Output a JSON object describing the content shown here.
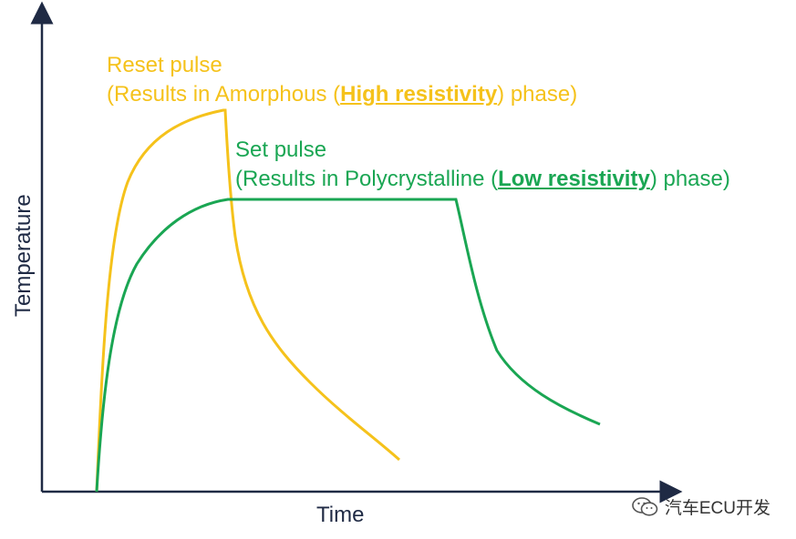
{
  "axes": {
    "x_label": "Time",
    "y_label": "Temperature"
  },
  "reset_pulse": {
    "title": "Reset pulse",
    "desc_prefix": "(Results in Amorphous (",
    "desc_emphasis": "High resistivity",
    "desc_suffix": ") phase)",
    "color": "#f5c21b"
  },
  "set_pulse": {
    "title": "Set pulse",
    "desc_prefix": "(Results in Polycrystalline (",
    "desc_emphasis": "Low resistivity",
    "desc_suffix": ") phase)",
    "color": "#1aa653"
  },
  "axis_color": "#1f2a44",
  "watermark": {
    "icon": "wechat-icon",
    "text": "汽车ECU开发"
  }
}
